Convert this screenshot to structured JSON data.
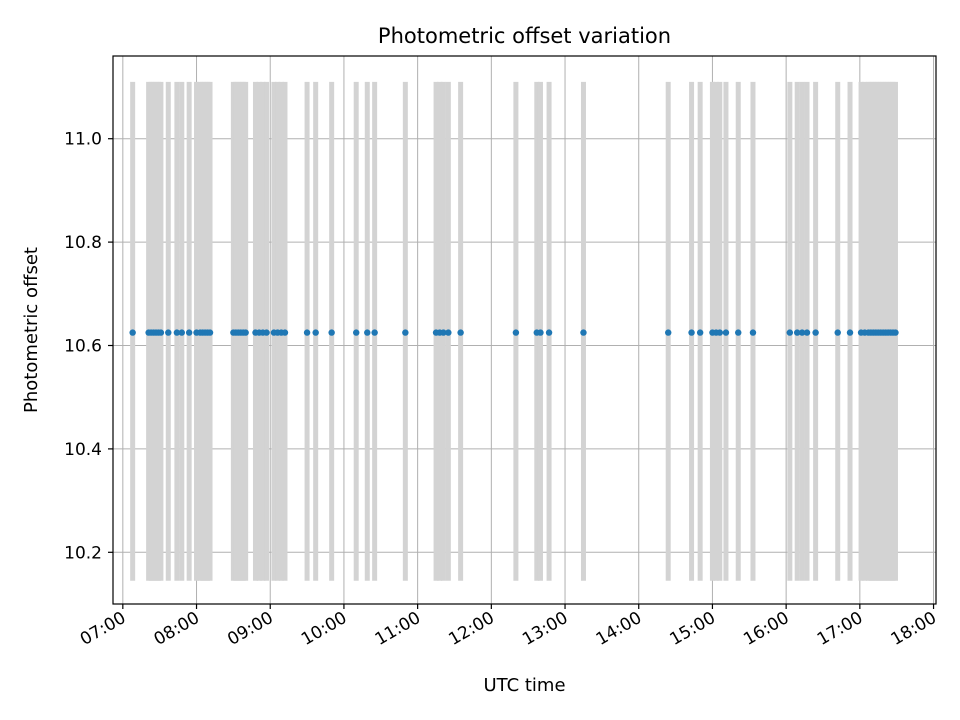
{
  "chart_data": {
    "type": "scatter",
    "title": "Photometric offset variation",
    "xlabel": "UTC time",
    "ylabel": "Photometric offset",
    "x_axis": {
      "type": "time",
      "range": [
        "06:52",
        "18:02"
      ],
      "ticks": [
        "07:00",
        "08:00",
        "09:00",
        "10:00",
        "11:00",
        "12:00",
        "13:00",
        "14:00",
        "15:00",
        "16:00",
        "17:00",
        "18:00"
      ]
    },
    "y_axis": {
      "range": [
        10.1,
        11.16
      ],
      "ticks": [
        10.2,
        10.4,
        10.6,
        10.8,
        11.0
      ],
      "tick_labels": [
        "10.2",
        "10.4",
        "10.6",
        "10.8",
        "11.0"
      ]
    },
    "grid": true,
    "marker_color": "#1f77b4",
    "errorbar_color": "#d3d3d3",
    "errorbar": {
      "low": 10.145,
      "high": 11.11
    },
    "series": [
      {
        "x": [
          "07:08",
          "07:21",
          "07:23",
          "07:25",
          "07:27",
          "07:29",
          "07:31",
          "07:37",
          "07:44",
          "07:48",
          "07:54",
          "08:00",
          "08:03",
          "08:05",
          "08:07",
          "08:09",
          "08:11",
          "08:30",
          "08:32",
          "08:34",
          "08:36",
          "08:38",
          "08:40",
          "08:48",
          "08:51",
          "08:54",
          "08:57",
          "09:03",
          "09:06",
          "09:09",
          "09:12",
          "09:30",
          "09:37",
          "09:50",
          "10:10",
          "10:19",
          "10:25",
          "10:50",
          "11:15",
          "11:18",
          "11:21",
          "11:25",
          "11:35",
          "12:20",
          "12:37",
          "12:40",
          "12:47",
          "13:15",
          "14:24",
          "14:43",
          "14:50",
          "15:00",
          "15:03",
          "15:06",
          "15:11",
          "15:21",
          "15:33",
          "16:03",
          "16:09",
          "16:13",
          "16:17",
          "16:24",
          "16:42",
          "16:52",
          "17:01",
          "17:04",
          "17:07",
          "17:09",
          "17:11",
          "17:13",
          "17:15",
          "17:17",
          "17:19",
          "17:21",
          "17:23",
          "17:25",
          "17:27",
          "17:29"
        ],
        "y": 10.625
      }
    ]
  }
}
